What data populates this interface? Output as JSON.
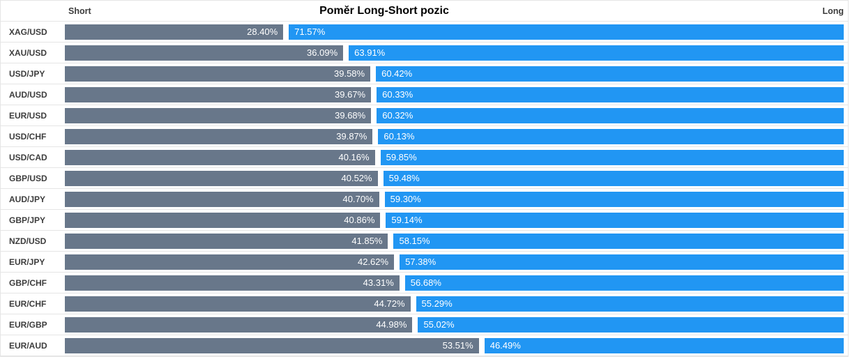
{
  "header": {
    "short_label": "Short",
    "title": "Poměr Long-Short pozic",
    "long_label": "Long"
  },
  "colors": {
    "short_bar": "#68778A",
    "long_bar": "#2196F3",
    "border": "#E5E5E5",
    "label_text": "#3D3D3D",
    "bar_text": "#FFFFFF"
  },
  "chart_data": {
    "type": "bar",
    "orientation": "horizontal-stacked",
    "title": "Poměr Long-Short pozic",
    "legend_left": "Short",
    "legend_right": "Long",
    "value_format": "percent",
    "xlim": [
      0,
      100
    ],
    "grid": false,
    "categories": [
      "XAG/USD",
      "XAU/USD",
      "USD/JPY",
      "AUD/USD",
      "EUR/USD",
      "USD/CHF",
      "USD/CAD",
      "GBP/USD",
      "AUD/JPY",
      "GBP/JPY",
      "NZD/USD",
      "EUR/JPY",
      "GBP/CHF",
      "EUR/CHF",
      "EUR/GBP",
      "EUR/AUD"
    ],
    "series": [
      {
        "name": "Short",
        "values": [
          28.4,
          36.09,
          39.58,
          39.67,
          39.68,
          39.87,
          40.16,
          40.52,
          40.7,
          40.86,
          41.85,
          42.62,
          43.31,
          44.72,
          44.98,
          53.51
        ]
      },
      {
        "name": "Long",
        "values": [
          71.57,
          63.91,
          60.42,
          60.33,
          60.32,
          60.13,
          59.85,
          59.48,
          59.3,
          59.14,
          58.15,
          57.38,
          56.68,
          55.29,
          55.02,
          46.49
        ]
      }
    ]
  }
}
